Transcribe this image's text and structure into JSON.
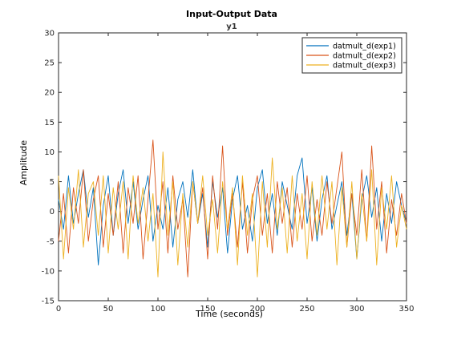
{
  "figure": {
    "title": "Input-Output Data",
    "subtitle": "y1",
    "xlabel": "Time (seconds)",
    "ylabel": "Amplitude"
  },
  "chart_data": {
    "type": "line",
    "title": "Input-Output Data",
    "subtitle": "y1",
    "xlabel": "Time (seconds)",
    "ylabel": "Amplitude",
    "xlim": [
      0,
      350
    ],
    "ylim": [
      -15,
      30
    ],
    "xticks": [
      0,
      50,
      100,
      150,
      200,
      250,
      300,
      350
    ],
    "yticks": [
      -15,
      -10,
      -5,
      0,
      5,
      10,
      15,
      20,
      25,
      30
    ],
    "grid": false,
    "legend_position": "top-right",
    "series": [
      {
        "name": "datmult_d(exp1)",
        "color": "#0072BD",
        "x": [
          0,
          5,
          10,
          15,
          20,
          25,
          30,
          35,
          40,
          45,
          50,
          55,
          60,
          65,
          70,
          75,
          80,
          85,
          90,
          95,
          100,
          105,
          110,
          115,
          120,
          125,
          130,
          135,
          140,
          145,
          150,
          155,
          160,
          165,
          170,
          175,
          180,
          185,
          190,
          195,
          200,
          205,
          210,
          215,
          220,
          225,
          230,
          235,
          240,
          245,
          250,
          255,
          260,
          265,
          270,
          275,
          280,
          285,
          290,
          295,
          300,
          305,
          310,
          315,
          320,
          325,
          330,
          335,
          340,
          345,
          350
        ],
        "y": [
          2,
          -3,
          6,
          -2,
          3,
          7,
          -1,
          4,
          -9,
          1,
          6,
          -4,
          3,
          7,
          -2,
          5,
          -3,
          2,
          6,
          -5,
          1,
          -3,
          4,
          -6,
          2,
          5,
          -1,
          7,
          -2,
          3,
          -6,
          5,
          -1,
          4,
          -7,
          2,
          6,
          -3,
          1,
          -5,
          4,
          7,
          -2,
          3,
          -4,
          5,
          1,
          -3,
          6,
          9,
          -2,
          4,
          -5,
          2,
          6,
          -3,
          1,
          5,
          -4,
          3,
          -8,
          2,
          6,
          -1,
          4,
          -5,
          3,
          -2,
          5,
          1,
          -2
        ]
      },
      {
        "name": "datmult_d(exp2)",
        "color": "#D95319",
        "x": [
          0,
          5,
          10,
          15,
          20,
          25,
          30,
          35,
          40,
          45,
          50,
          55,
          60,
          65,
          70,
          75,
          80,
          85,
          90,
          95,
          100,
          105,
          110,
          115,
          120,
          125,
          130,
          135,
          140,
          145,
          150,
          155,
          160,
          165,
          170,
          175,
          180,
          185,
          190,
          195,
          200,
          205,
          210,
          215,
          220,
          225,
          230,
          235,
          240,
          245,
          250,
          255,
          260,
          265,
          270,
          275,
          280,
          285,
          290,
          295,
          300,
          305,
          310,
          315,
          320,
          325,
          330,
          335,
          340,
          345,
          350
        ],
        "y": [
          -5,
          3,
          -7,
          4,
          -2,
          7,
          -5,
          2,
          6,
          -6,
          3,
          -4,
          5,
          -7,
          4,
          -2,
          6,
          -8,
          2,
          12,
          -3,
          5,
          -7,
          6,
          -3,
          2,
          -11,
          5,
          -2,
          4,
          -8,
          6,
          -3,
          11,
          -4,
          3,
          -6,
          5,
          -7,
          2,
          6,
          -4,
          3,
          -7,
          5,
          -2,
          4,
          -6,
          3,
          -3,
          6,
          -5,
          2,
          -4,
          5,
          -2,
          4,
          10,
          -6,
          3,
          -4,
          7,
          -5,
          11,
          -3,
          5,
          -7,
          2,
          -4,
          3,
          -2
        ]
      },
      {
        "name": "datmult_d(exp3)",
        "color": "#EDB120",
        "x": [
          0,
          5,
          10,
          15,
          20,
          25,
          30,
          35,
          40,
          45,
          50,
          55,
          60,
          65,
          70,
          75,
          80,
          85,
          90,
          95,
          100,
          105,
          110,
          115,
          120,
          125,
          130,
          135,
          140,
          145,
          150,
          155,
          160,
          165,
          170,
          175,
          180,
          185,
          190,
          195,
          200,
          205,
          210,
          215,
          220,
          225,
          230,
          235,
          240,
          245,
          250,
          255,
          260,
          265,
          270,
          275,
          280,
          285,
          290,
          295,
          300,
          305,
          310,
          315,
          320,
          325,
          330,
          335,
          340,
          345,
          350
        ],
        "y": [
          6,
          -8,
          4,
          -3,
          7,
          -6,
          3,
          5,
          -4,
          6,
          -7,
          4,
          -3,
          5,
          -8,
          6,
          -2,
          4,
          -5,
          3,
          -11,
          10,
          -4,
          5,
          -9,
          3,
          -6,
          5,
          -2,
          6,
          -4,
          2,
          -7,
          5,
          -3,
          4,
          -9,
          6,
          -4,
          3,
          -11,
          5,
          -6,
          9,
          -3,
          4,
          -7,
          6,
          -5,
          3,
          -8,
          5,
          -4,
          6,
          -3,
          5,
          -9,
          4,
          -6,
          5,
          -8,
          3,
          -5,
          7,
          -9,
          4,
          -3,
          6,
          -6,
          1,
          -3
        ]
      }
    ]
  }
}
